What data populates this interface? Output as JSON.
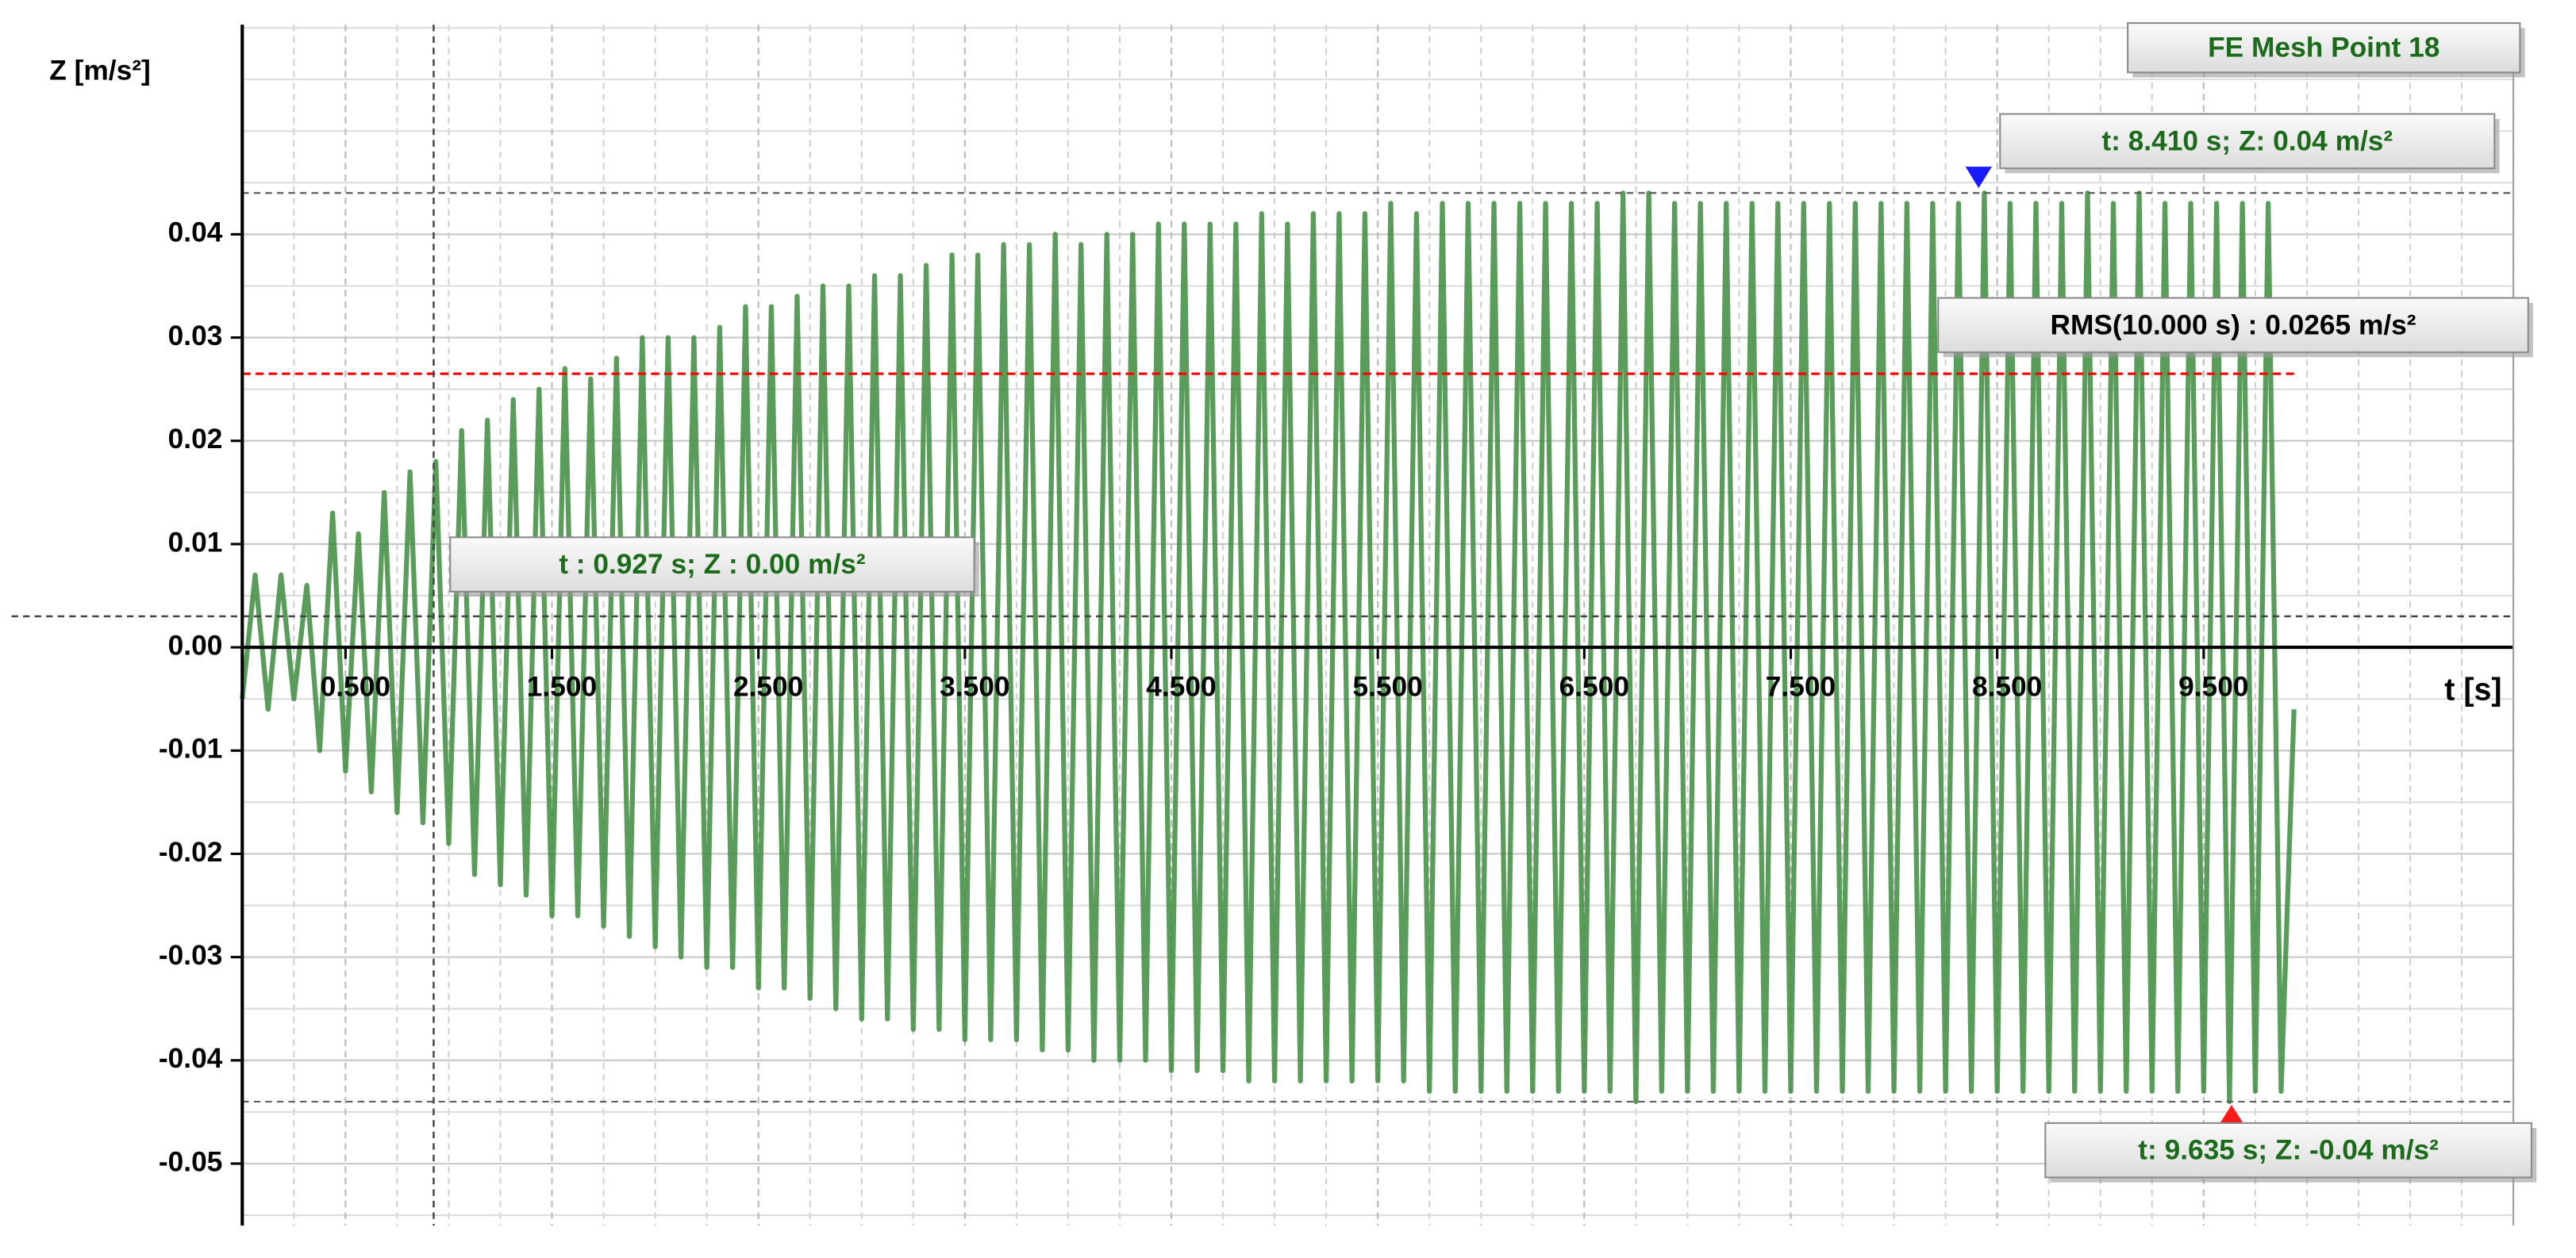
{
  "chart_data": {
    "type": "line",
    "y_label": "Z [m/s²]",
    "x_label": "t [s]",
    "xlim": [
      0,
      11.0
    ],
    "ylim": [
      -0.056,
      0.0603
    ],
    "xticks": [
      {
        "value": 0.5,
        "label": "0.500"
      },
      {
        "value": 1.5,
        "label": "1.500"
      },
      {
        "value": 2.5,
        "label": "2.500"
      },
      {
        "value": 3.5,
        "label": "3.500"
      },
      {
        "value": 4.5,
        "label": "4.500"
      },
      {
        "value": 5.5,
        "label": "5.500"
      },
      {
        "value": 6.5,
        "label": "6.500"
      },
      {
        "value": 7.5,
        "label": "7.500"
      },
      {
        "value": 8.5,
        "label": "8.500"
      },
      {
        "value": 9.5,
        "label": "9.500"
      }
    ],
    "yticks": [
      -0.05,
      -0.04,
      -0.03,
      -0.02,
      -0.01,
      {
        "value": 0,
        "label": "0.00"
      },
      0.01,
      0.02,
      0.03,
      0.04
    ],
    "grid": true,
    "x": [
      0,
      0.0625,
      0.125,
      0.1875,
      0.25,
      0.3125,
      0.375,
      0.4375,
      0.5,
      0.5625,
      0.625,
      0.6875,
      0.75,
      0.8125,
      0.875,
      0.9375,
      1,
      1.0625,
      1.125,
      1.1875,
      1.25,
      1.3125,
      1.375,
      1.4375,
      1.5,
      1.5625,
      1.625,
      1.6875,
      1.75,
      1.8125,
      1.875,
      1.9375,
      2,
      2.0625,
      2.125,
      2.1875,
      2.25,
      2.3125,
      2.375,
      2.4375,
      2.5,
      2.5625,
      2.625,
      2.6875,
      2.75,
      2.8125,
      2.875,
      2.9375,
      3,
      3.0625,
      3.125,
      3.1875,
      3.25,
      3.3125,
      3.375,
      3.4375,
      3.5,
      3.5625,
      3.625,
      3.6875,
      3.75,
      3.8125,
      3.875,
      3.9375,
      4,
      4.0625,
      4.125,
      4.1875,
      4.25,
      4.3125,
      4.375,
      4.4375,
      4.5,
      4.5625,
      4.625,
      4.6875,
      4.75,
      4.8125,
      4.875,
      4.9375,
      5,
      5.0625,
      5.125,
      5.1875,
      5.25,
      5.3125,
      5.375,
      5.4375,
      5.5,
      5.5625,
      5.625,
      5.6875,
      5.75,
      5.8125,
      5.875,
      5.9375,
      6,
      6.0625,
      6.125,
      6.1875,
      6.25,
      6.3125,
      6.375,
      6.4375,
      6.5,
      6.5625,
      6.625,
      6.6875,
      6.75,
      6.8125,
      6.875,
      6.9375,
      7,
      7.0625,
      7.125,
      7.1875,
      7.25,
      7.3125,
      7.375,
      7.4375,
      7.5,
      7.5625,
      7.625,
      7.6875,
      7.75,
      7.8125,
      7.875,
      7.9375,
      8,
      8.0625,
      8.125,
      8.1875,
      8.25,
      8.3125,
      8.375,
      8.4375,
      8.5,
      8.5625,
      8.625,
      8.6875,
      8.75,
      8.8125,
      8.875,
      8.9375,
      9,
      9.0625,
      9.125,
      9.1875,
      9.25,
      9.3125,
      9.375,
      9.4375,
      9.5,
      9.5625,
      9.625,
      9.6875,
      9.75,
      9.8125,
      9.875,
      9.9375
    ],
    "series": [
      {
        "name": "FE Mesh Point 18",
        "color": "#3d8b3d",
        "values": [
          -0.005,
          0.007,
          -0.006,
          0.007,
          -0.005,
          0.006,
          -0.01,
          0.013,
          -0.012,
          0.011,
          -0.014,
          0.015,
          -0.016,
          0.017,
          -0.017,
          0.018,
          -0.019,
          0.021,
          -0.022,
          0.022,
          -0.023,
          0.024,
          -0.024,
          0.025,
          -0.026,
          0.027,
          -0.026,
          0.026,
          -0.027,
          0.028,
          -0.028,
          0.03,
          -0.029,
          0.03,
          -0.03,
          0.03,
          -0.031,
          0.031,
          -0.031,
          0.033,
          -0.033,
          0.033,
          -0.033,
          0.034,
          -0.034,
          0.035,
          -0.035,
          0.035,
          -0.036,
          0.036,
          -0.036,
          0.036,
          -0.037,
          0.037,
          -0.037,
          0.038,
          -0.038,
          0.038,
          -0.038,
          0.039,
          -0.038,
          0.039,
          -0.039,
          0.04,
          -0.039,
          0.039,
          -0.04,
          0.04,
          -0.04,
          0.04,
          -0.04,
          0.041,
          -0.041,
          0.041,
          -0.041,
          0.041,
          -0.041,
          0.041,
          -0.042,
          0.042,
          -0.042,
          0.041,
          -0.042,
          0.042,
          -0.042,
          0.042,
          -0.042,
          0.042,
          -0.042,
          0.043,
          -0.042,
          0.042,
          -0.043,
          0.043,
          -0.043,
          0.043,
          -0.043,
          0.043,
          -0.043,
          0.043,
          -0.043,
          0.043,
          -0.043,
          0.043,
          -0.043,
          0.043,
          -0.043,
          0.044,
          -0.044,
          0.044,
          -0.043,
          0.043,
          -0.043,
          0.043,
          -0.043,
          0.043,
          -0.043,
          0.043,
          -0.043,
          0.043,
          -0.043,
          0.043,
          -0.043,
          0.043,
          -0.043,
          0.043,
          -0.043,
          0.043,
          -0.043,
          0.043,
          -0.043,
          0.043,
          -0.043,
          0.043,
          -0.043,
          0.044,
          -0.043,
          0.043,
          -0.043,
          0.043,
          -0.043,
          0.043,
          -0.043,
          0.044,
          -0.043,
          0.043,
          -0.043,
          0.044,
          -0.043,
          0.043,
          -0.043,
          0.043,
          -0.043,
          0.043,
          -0.044,
          0.043,
          -0.043,
          0.043,
          -0.043,
          -0.006
        ]
      }
    ],
    "max_marker": {
      "text": "t: 8.410 s; Z: 0.04 m/s²",
      "x": 8.41,
      "y": 0.044,
      "color": "#1a1aff"
    },
    "min_marker": {
      "text": "t: 9.635 s; Z: -0.04 m/s²",
      "x": 9.635,
      "y": -0.044,
      "color": "#ff1a1a"
    },
    "rms": {
      "text": "RMS(10.000 s) : 0.0265 m/s²",
      "value": 0.0265,
      "color": "#ff0000"
    },
    "cursor": {
      "text": "t : 0.927 s; Z : 0.00 m/s²",
      "x": 0.927,
      "y": 0.003
    }
  }
}
